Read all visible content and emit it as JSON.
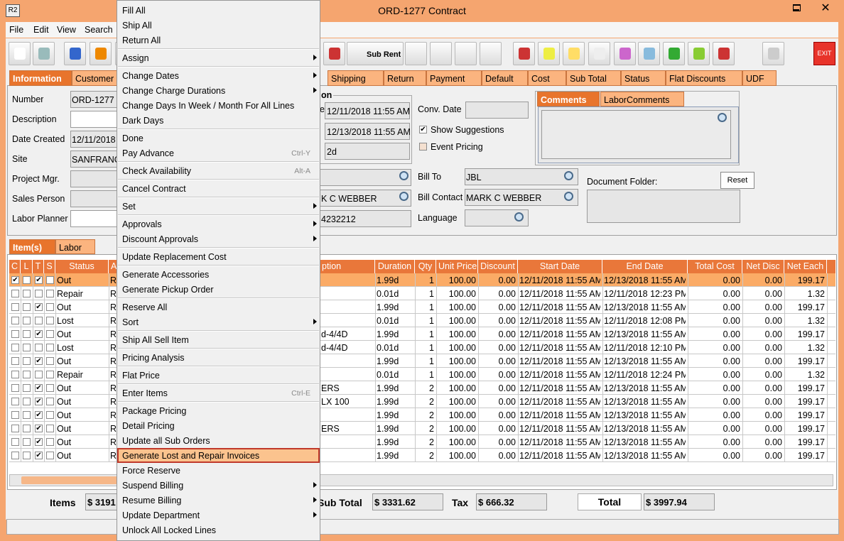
{
  "window": {
    "app_icon": "R2",
    "title": "ORD-1277 Contract"
  },
  "menu_bar": [
    "File",
    "Edit",
    "View",
    "Search"
  ],
  "toolbar": {
    "sub_rent": "Sub Rent",
    "exit": "EXIT"
  },
  "tabs": {
    "items": [
      "Information",
      "Customer",
      "Shipping",
      "Return",
      "Payment",
      "Default",
      "Cost",
      "Sub Total",
      "Status",
      "Flat Discounts",
      "UDF"
    ],
    "selected": 0
  },
  "info": {
    "left_fields": [
      {
        "label": "Number",
        "value": "ORD-1277",
        "editable": false
      },
      {
        "label": "Description",
        "editable": true
      },
      {
        "label": "Date Created",
        "value": "12/11/2018",
        "editable": false
      },
      {
        "label": "Site",
        "value": "SANFRANC",
        "editable": false
      },
      {
        "label": "Project Mgr.",
        "editable": false
      },
      {
        "label": "Sales Person",
        "editable": false
      },
      {
        "label": "Labor Planner",
        "editable": true
      }
    ],
    "dates_group": {
      "title": "on",
      "date_label": "e",
      "values": [
        "12/11/2018 11:55 AM",
        "12/13/2018 11:55 AM",
        "2d"
      ]
    },
    "conv_date_label": "Conv. Date",
    "checkboxes": [
      {
        "label": "Show Suggestions",
        "checked": true
      },
      {
        "label": "Event Pricing",
        "checked": false
      }
    ],
    "comment_tabs": [
      "Comments",
      "LaborComments"
    ],
    "customer_values": [
      "K C WEBBER",
      "4232212"
    ],
    "bill_fields": [
      {
        "label": "Bill To",
        "value": "JBL"
      },
      {
        "label": "Bill Contact",
        "value": "MARK C WEBBER"
      },
      {
        "label": "Language"
      }
    ],
    "document_folder_label": "Document Folder:",
    "reset_button": "Reset"
  },
  "item_tabs": {
    "items": [
      "Item(s)",
      "Labor"
    ],
    "selected": 0
  },
  "table": {
    "headers": [
      "C",
      "L",
      "T",
      "S",
      "Status",
      "A",
      "ption",
      "Duration",
      "Qty",
      "Unit Price",
      "Discount",
      "Start Date",
      "End Date",
      "Total Cost",
      "Net Disc",
      "Net Each"
    ],
    "selected_row": 0,
    "rows": [
      {
        "checks": [
          true,
          false,
          true,
          false
        ],
        "cells": [
          "Out",
          "R",
          null,
          "1.99d",
          "1",
          "100.00",
          "0.00",
          "12/11/2018 11:55 AM",
          "12/13/2018 11:55 AM",
          "0.00",
          "0.00",
          "199.17"
        ]
      },
      {
        "checks": [
          false,
          false,
          false,
          false
        ],
        "cells": [
          "Repair",
          "R",
          null,
          "0.01d",
          "1",
          "100.00",
          "0.00",
          "12/11/2018 11:55 AM",
          "12/11/2018 12:23 PM",
          "0.00",
          "0.00",
          "1.32"
        ]
      },
      {
        "checks": [
          false,
          false,
          true,
          false
        ],
        "cells": [
          "Out",
          "R",
          null,
          "1.99d",
          "1",
          "100.00",
          "0.00",
          "12/11/2018 11:55 AM",
          "12/13/2018 11:55 AM",
          "0.00",
          "0.00",
          "199.17"
        ]
      },
      {
        "checks": [
          false,
          false,
          false,
          false
        ],
        "cells": [
          "Lost",
          "R",
          null,
          "0.01d",
          "1",
          "100.00",
          "0.00",
          "12/11/2018 11:55 AM",
          "12/11/2018 12:08 PM",
          "0.00",
          "0.00",
          "1.32"
        ]
      },
      {
        "checks": [
          false,
          false,
          true,
          false
        ],
        "cells": [
          "Out",
          "R",
          "d-4/4D",
          "1.99d",
          "1",
          "100.00",
          "0.00",
          "12/11/2018 11:55 AM",
          "12/13/2018 11:55 AM",
          "0.00",
          "0.00",
          "199.17"
        ]
      },
      {
        "checks": [
          false,
          false,
          false,
          false
        ],
        "cells": [
          "Lost",
          "R",
          "d-4/4D",
          "0.01d",
          "1",
          "100.00",
          "0.00",
          "12/11/2018 11:55 AM",
          "12/11/2018 12:10 PM",
          "0.00",
          "0.00",
          "1.32"
        ]
      },
      {
        "checks": [
          false,
          false,
          true,
          false
        ],
        "cells": [
          "Out",
          "R",
          null,
          "1.99d",
          "1",
          "100.00",
          "0.00",
          "12/11/2018 11:55 AM",
          "12/13/2018 11:55 AM",
          "0.00",
          "0.00",
          "199.17"
        ]
      },
      {
        "checks": [
          false,
          false,
          false,
          false
        ],
        "cells": [
          "Repair",
          "R",
          null,
          "0.01d",
          "1",
          "100.00",
          "0.00",
          "12/11/2018 11:55 AM",
          "12/11/2018 12:24 PM",
          "0.00",
          "0.00",
          "1.32"
        ]
      },
      {
        "checks": [
          false,
          false,
          true,
          false
        ],
        "cells": [
          "Out",
          "R",
          "ERS",
          "1.99d",
          "2",
          "100.00",
          "0.00",
          "12/11/2018 11:55 AM",
          "12/13/2018 11:55 AM",
          "0.00",
          "0.00",
          "199.17"
        ]
      },
      {
        "checks": [
          false,
          false,
          true,
          false
        ],
        "cells": [
          "Out",
          "R",
          "LX 100",
          "1.99d",
          "2",
          "100.00",
          "0.00",
          "12/11/2018 11:55 AM",
          "12/13/2018 11:55 AM",
          "0.00",
          "0.00",
          "199.17"
        ]
      },
      {
        "checks": [
          false,
          false,
          true,
          false
        ],
        "cells": [
          "Out",
          "R",
          null,
          "1.99d",
          "2",
          "100.00",
          "0.00",
          "12/11/2018 11:55 AM",
          "12/13/2018 11:55 AM",
          "0.00",
          "0.00",
          "199.17"
        ]
      },
      {
        "checks": [
          false,
          false,
          true,
          false
        ],
        "cells": [
          "Out",
          "R",
          "ERS",
          "1.99d",
          "2",
          "100.00",
          "0.00",
          "12/11/2018 11:55 AM",
          "12/13/2018 11:55 AM",
          "0.00",
          "0.00",
          "199.17"
        ]
      },
      {
        "checks": [
          false,
          false,
          true,
          false
        ],
        "cells": [
          "Out",
          "R",
          null,
          "1.99d",
          "2",
          "100.00",
          "0.00",
          "12/11/2018 11:55 AM",
          "12/13/2018 11:55 AM",
          "0.00",
          "0.00",
          "199.17"
        ]
      },
      {
        "checks": [
          false,
          false,
          true,
          false
        ],
        "cells": [
          "Out",
          "R",
          null,
          "1.99d",
          "2",
          "100.00",
          "0.00",
          "12/11/2018 11:55 AM",
          "12/13/2018 11:55 AM",
          "0.00",
          "0.00",
          "199.17"
        ]
      }
    ]
  },
  "totals": [
    {
      "label": "Items",
      "value": "$ 3191"
    },
    {
      "label": "Sub Total",
      "value": "$ 3331.62"
    },
    {
      "label": "Tax",
      "value": "$ 666.32"
    },
    {
      "label": "Total",
      "value": "$ 3997.94"
    }
  ],
  "context_menu": {
    "groups": [
      [
        {
          "label": "Fill All"
        },
        {
          "label": "Ship All"
        },
        {
          "label": "Return All"
        }
      ],
      [
        {
          "label": "Assign",
          "submenu": true
        }
      ],
      [
        {
          "label": "Change Dates",
          "submenu": true
        },
        {
          "label": "Change Charge Durations",
          "submenu": true
        },
        {
          "label": "Change Days In Week / Month For All Lines"
        },
        {
          "label": "Dark Days"
        }
      ],
      [
        {
          "label": "Done"
        },
        {
          "label": "Pay Advance",
          "shortcut": "Ctrl-Y"
        }
      ],
      [
        {
          "label": "Check Availability",
          "shortcut": "Alt-A"
        }
      ],
      [
        {
          "label": "Cancel Contract"
        }
      ],
      [
        {
          "label": "Set",
          "submenu": true
        }
      ],
      [
        {
          "label": "Approvals",
          "submenu": true
        },
        {
          "label": "Discount Approvals",
          "submenu": true
        }
      ],
      [
        {
          "label": "Update Replacement Cost"
        }
      ],
      [
        {
          "label": "Generate Accessories"
        },
        {
          "label": "Generate Pickup Order"
        }
      ],
      [
        {
          "label": "Reserve All"
        },
        {
          "label": "Sort",
          "submenu": true
        }
      ],
      [
        {
          "label": "Ship All Sell Item"
        }
      ],
      [
        {
          "label": "Pricing Analysis"
        }
      ],
      [
        {
          "label": "Flat Price"
        }
      ],
      [
        {
          "label": "Enter Items",
          "shortcut": "Ctrl-E"
        }
      ],
      [
        {
          "label": "Package Pricing"
        },
        {
          "label": "Detail Pricing"
        },
        {
          "label": "Update all Sub Orders"
        },
        {
          "label": "Generate Lost and Repair Invoices",
          "selected": true
        },
        {
          "label": "Force Reserve"
        },
        {
          "label": "Suspend Billing",
          "submenu": true
        },
        {
          "label": "Resume Billing",
          "submenu": true
        },
        {
          "label": "Update Department",
          "submenu": true
        },
        {
          "label": "Unlock All Locked Lines"
        }
      ]
    ]
  }
}
